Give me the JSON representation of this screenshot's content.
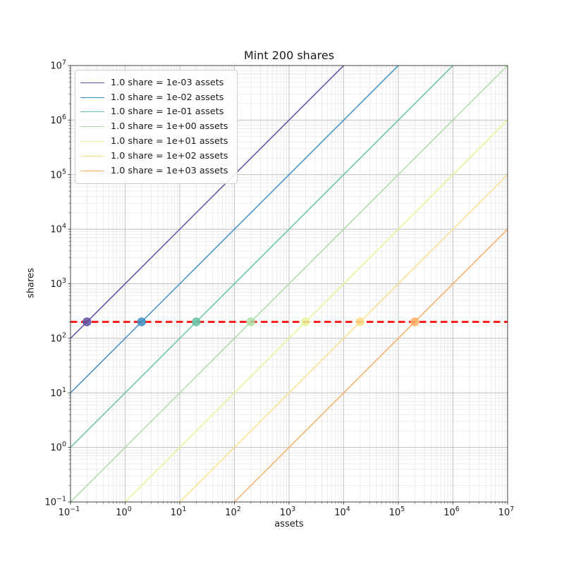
{
  "figure": {
    "kind": "matplotlib-log-log-plot"
  },
  "chart_data": {
    "type": "line",
    "title": "Mint 200 shares",
    "xlabel": "assets",
    "ylabel": "shares",
    "x_scale": "log",
    "y_scale": "log",
    "x_log_range": [
      -1,
      7
    ],
    "y_log_range": [
      -1,
      7
    ],
    "x_tick_exponents": [
      -1,
      0,
      1,
      2,
      3,
      4,
      5,
      6,
      7
    ],
    "y_tick_exponents": [
      -1,
      0,
      1,
      2,
      3,
      4,
      5,
      6,
      7
    ],
    "grid": "major+minor",
    "legend_position": "upper left",
    "mint_shares": 200,
    "series": [
      {
        "label": "1.0 share = 1e-03 assets",
        "price": 0.001,
        "color": "#5e4fa2",
        "marker": {
          "assets": 0.2,
          "shares": 200
        }
      },
      {
        "label": "1.0 share = 1e-02 assets",
        "price": 0.01,
        "color": "#3e8fc4",
        "marker": {
          "assets": 2,
          "shares": 200
        }
      },
      {
        "label": "1.0 share = 1e-01 assets",
        "price": 0.1,
        "color": "#66c2a5",
        "marker": {
          "assets": 20,
          "shares": 200
        }
      },
      {
        "label": "1.0 share = 1e+00 assets",
        "price": 1,
        "color": "#abdda4",
        "marker": {
          "assets": 200,
          "shares": 200
        }
      },
      {
        "label": "1.0 share = 1e+01 assets",
        "price": 10,
        "color": "#e6f598",
        "marker": {
          "assets": 2000,
          "shares": 200
        }
      },
      {
        "label": "1.0 share = 1e+02 assets",
        "price": 100,
        "color": "#fee08b",
        "marker": {
          "assets": 20000,
          "shares": 200
        }
      },
      {
        "label": "1.0 share = 1e+03 assets",
        "price": 1000,
        "color": "#fdae61",
        "marker": {
          "assets": 200000,
          "shares": 200
        }
      }
    ],
    "hline": {
      "shares": 200,
      "color": "#ff0000",
      "linestyle": "dashed",
      "linewidth": 2.6
    },
    "colors": {
      "grid_major": "#bdbdbd",
      "grid_minor": "#e3e3e3",
      "spine": "#333333",
      "tick": "#333333",
      "text": "#1a1a1a"
    }
  }
}
